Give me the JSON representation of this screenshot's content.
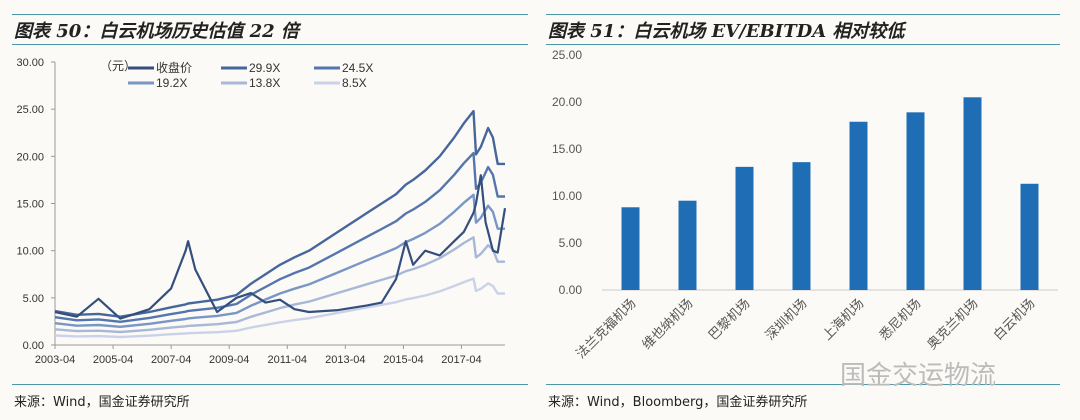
{
  "left": {
    "title": "图表 50：白云机场历史估值 22 倍",
    "source": "来源：Wind，国金证券研究所"
  },
  "right": {
    "title": "图表 51：白云机场 EV/EBITDA 相对较低",
    "source": "来源：Wind，Bloomberg，国金证券研究所"
  },
  "watermark": "国金交运物流",
  "chart_data": [
    {
      "type": "line",
      "unit_label": "（元）",
      "ylim": [
        0,
        30
      ],
      "yticks": [
        "0.00",
        "5.00",
        "10.00",
        "15.00",
        "20.00",
        "25.00",
        "30.00"
      ],
      "xticks": [
        "2003-04",
        "2005-04",
        "2007-04",
        "2009-04",
        "2011-04",
        "2013-04",
        "2015-04",
        "2017-04"
      ],
      "grid": false,
      "legend": "top",
      "x": [
        "2003-04",
        "2004-01",
        "2004-10",
        "2005-07",
        "2006-07",
        "2007-04",
        "2007-10",
        "2007-11",
        "2008-02",
        "2008-11",
        "2009-07",
        "2010-01",
        "2010-07",
        "2011-01",
        "2011-07",
        "2012-01",
        "2013-01",
        "2014-01",
        "2014-07",
        "2015-01",
        "2015-05",
        "2015-08",
        "2016-01",
        "2016-07",
        "2017-01",
        "2017-05",
        "2017-09",
        "2017-10",
        "2017-12",
        "2018-02",
        "2018-03",
        "2018-05",
        "2018-07",
        "2018-10"
      ],
      "series": [
        {
          "name": "收盘价",
          "color": "#344f7e",
          "values": [
            3.5,
            3.0,
            4.9,
            2.8,
            3.8,
            6.0,
            10.0,
            11.0,
            8.0,
            3.5,
            5.0,
            5.5,
            4.5,
            4.8,
            3.8,
            3.5,
            3.7,
            4.2,
            4.5,
            7.0,
            11.0,
            8.5,
            10.0,
            9.5,
            11.0,
            12.0,
            14.0,
            15.0,
            18.0,
            13.0,
            12.0,
            10.0,
            9.8,
            14.5
          ]
        },
        {
          "name": "29.9X",
          "color": "#46679c",
          "values": [
            3.6,
            3.2,
            3.3,
            3.0,
            3.5,
            4.0,
            4.3,
            4.4,
            4.5,
            4.8,
            5.3,
            6.5,
            7.5,
            8.5,
            9.3,
            10.0,
            12.0,
            14.0,
            15.0,
            16.0,
            17.0,
            17.5,
            18.5,
            20.0,
            22.0,
            23.5,
            24.8,
            20.2,
            21.0,
            22.3,
            23.0,
            22.0,
            19.2,
            19.2
          ]
        },
        {
          "name": "24.5X",
          "color": "#5576ad",
          "values": [
            2.95,
            2.62,
            2.71,
            2.46,
            2.87,
            3.28,
            3.53,
            3.61,
            3.69,
            3.94,
            4.35,
            5.33,
            6.15,
            6.97,
            7.63,
            8.2,
            9.84,
            11.48,
            12.3,
            13.12,
            13.94,
            14.35,
            15.17,
            16.4,
            18.04,
            19.27,
            20.34,
            16.56,
            17.22,
            18.29,
            18.86,
            18.04,
            15.74,
            15.74
          ]
        },
        {
          "name": "19.2X",
          "color": "#7896c6",
          "values": [
            2.31,
            2.05,
            2.12,
            1.93,
            2.25,
            2.57,
            2.76,
            2.82,
            2.89,
            3.08,
            3.4,
            4.17,
            4.82,
            5.46,
            5.97,
            6.42,
            7.7,
            8.99,
            9.63,
            10.27,
            10.91,
            11.24,
            11.88,
            12.84,
            14.12,
            15.09,
            15.92,
            12.97,
            13.48,
            14.32,
            14.77,
            14.12,
            12.33,
            12.33
          ]
        },
        {
          "name": "13.8X",
          "color": "#a9b8d8",
          "values": [
            1.66,
            1.47,
            1.52,
            1.38,
            1.61,
            1.84,
            1.98,
            2.02,
            2.07,
            2.21,
            2.44,
            2.99,
            3.45,
            3.91,
            4.28,
            4.6,
            5.52,
            6.44,
            6.9,
            7.36,
            7.82,
            8.05,
            8.51,
            9.2,
            10.12,
            10.81,
            11.41,
            9.29,
            9.66,
            10.26,
            10.58,
            10.12,
            8.83,
            8.83
          ]
        },
        {
          "name": "8.5X",
          "color": "#c9d2e8",
          "values": [
            1.02,
            0.91,
            0.94,
            0.85,
            0.99,
            1.14,
            1.22,
            1.25,
            1.28,
            1.36,
            1.51,
            1.85,
            2.13,
            2.41,
            2.64,
            2.84,
            3.41,
            3.98,
            4.26,
            4.54,
            4.83,
            4.97,
            5.25,
            5.68,
            6.25,
            6.67,
            7.04,
            5.74,
            5.96,
            6.33,
            6.53,
            6.25,
            5.45,
            5.45
          ]
        }
      ]
    },
    {
      "type": "bar",
      "ylim": [
        0,
        25
      ],
      "yticks": [
        "0.00",
        "5.00",
        "10.00",
        "15.00",
        "20.00",
        "25.00"
      ],
      "grid": false,
      "color": "#1f6db5",
      "categories": [
        "法兰克福机场",
        "维也纳机场",
        "巴黎机场",
        "深圳机场",
        "上海机场",
        "悉尼机场",
        "奥克兰机场",
        "白云机场"
      ],
      "values": [
        8.8,
        9.5,
        13.1,
        13.6,
        17.9,
        18.9,
        20.5,
        11.3
      ]
    }
  ]
}
